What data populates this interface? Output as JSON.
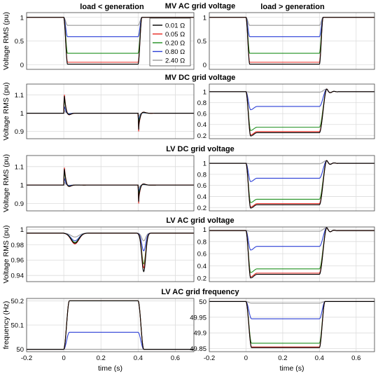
{
  "figure": {
    "column_titles": [
      "load < generation",
      "load > generation"
    ],
    "xlabel": "time (s)",
    "legend_entries": [
      "0.01 Ω",
      "0.05 Ω",
      "0.20 Ω",
      "0.80 Ω",
      "2.40 Ω"
    ],
    "colors": {
      "0.01 Ω": "#000000",
      "0.05 Ω": "#e8241c",
      "0.20 Ω": "#1f8f1f",
      "0.80 Ω": "#2b3fd6",
      "2.40 Ω": "#9a9a9a",
      "grid": "#dcdcdc",
      "axis": "#444444"
    },
    "x_ticks": [
      "-0.2",
      "0",
      "0.2",
      "0.4",
      "0.6"
    ]
  },
  "chart_data": [
    {
      "type": "line",
      "title": "MV AC grid voltage",
      "column": "load < generation",
      "ylabel": "Voltage RMS (pu)",
      "xlim": [
        -0.2,
        0.7
      ],
      "ylim": [
        -0.1,
        1.1
      ],
      "yticks": [
        "0",
        "0.5",
        "1"
      ],
      "grid": true,
      "legend": "top-right",
      "series": [
        {
          "name": "0.01 Ω",
          "pre": 1.0,
          "sag": 0.01,
          "post": 1.0
        },
        {
          "name": "0.05 Ω",
          "pre": 1.0,
          "sag": 0.05,
          "post": 1.0
        },
        {
          "name": "0.20 Ω",
          "pre": 1.0,
          "sag": 0.24,
          "post": 1.0
        },
        {
          "name": "0.80 Ω",
          "pre": 1.0,
          "sag": 0.59,
          "post": 1.0
        },
        {
          "name": "2.40 Ω",
          "pre": 1.0,
          "sag": 0.83,
          "post": 1.0
        }
      ]
    },
    {
      "type": "line",
      "title": "",
      "column": "load > generation",
      "ylabel": "",
      "xlim": [
        -0.2,
        0.7
      ],
      "ylim": [
        -0.1,
        1.1
      ],
      "yticks": [
        "0",
        "0.5",
        "1"
      ],
      "grid": true,
      "series": [
        {
          "name": "0.01 Ω",
          "pre": 1.0,
          "sag": 0.01,
          "post": 1.0
        },
        {
          "name": "0.05 Ω",
          "pre": 1.0,
          "sag": 0.05,
          "post": 1.0
        },
        {
          "name": "0.20 Ω",
          "pre": 1.0,
          "sag": 0.24,
          "post": 1.0
        },
        {
          "name": "0.80 Ω",
          "pre": 1.0,
          "sag": 0.59,
          "post": 1.0
        },
        {
          "name": "2.40 Ω",
          "pre": 1.0,
          "sag": 0.83,
          "post": 1.0
        }
      ]
    },
    {
      "type": "line",
      "title": "MV DC grid voltage",
      "column": "load < generation",
      "ylabel": "Voltage RMS (pu)",
      "xlim": [
        -0.2,
        0.7
      ],
      "ylim": [
        0.86,
        1.16
      ],
      "yticks": [
        "0.9",
        "1",
        "1.1"
      ],
      "grid": true,
      "series": [
        {
          "name": "0.01 Ω",
          "peak1": 1.13,
          "dip2": 0.91
        },
        {
          "name": "0.05 Ω",
          "peak1": 1.14,
          "dip2": 0.9
        },
        {
          "name": "0.20 Ω",
          "peak1": 1.11,
          "dip2": 0.93
        },
        {
          "name": "0.80 Ω",
          "peak1": 1.05,
          "dip2": 0.95
        },
        {
          "name": "2.40 Ω",
          "peak1": 1.02,
          "dip2": 0.98
        }
      ]
    },
    {
      "type": "line",
      "title": "",
      "column": "load > generation",
      "ylabel": "",
      "xlim": [
        -0.2,
        0.7
      ],
      "ylim": [
        0.14,
        1.14
      ],
      "yticks": [
        "0.2",
        "0.4",
        "0.6",
        "0.8",
        "1"
      ],
      "grid": true,
      "series": [
        {
          "name": "0.01 Ω",
          "pre": 1.0,
          "sag": 0.25,
          "post": 1.0
        },
        {
          "name": "0.05 Ω",
          "pre": 1.0,
          "sag": 0.27,
          "post": 1.0
        },
        {
          "name": "0.20 Ω",
          "pre": 1.0,
          "sag": 0.35,
          "post": 1.0
        },
        {
          "name": "0.80 Ω",
          "pre": 1.0,
          "sag": 0.73,
          "post": 1.0
        },
        {
          "name": "2.40 Ω",
          "pre": 1.0,
          "sag": 0.99,
          "post": 1.0
        }
      ]
    },
    {
      "type": "line",
      "title": "LV DC grid voltage",
      "column": "load < generation",
      "ylabel": "Voltage RMS (pu)",
      "xlim": [
        -0.2,
        0.7
      ],
      "ylim": [
        0.86,
        1.16
      ],
      "yticks": [
        "0.9",
        "1",
        "1.1"
      ],
      "grid": true,
      "series": [
        {
          "name": "0.01 Ω",
          "peak1": 1.12,
          "dip2": 0.91
        },
        {
          "name": "0.05 Ω",
          "peak1": 1.13,
          "dip2": 0.9
        },
        {
          "name": "0.20 Ω",
          "peak1": 1.1,
          "dip2": 0.93
        },
        {
          "name": "0.80 Ω",
          "peak1": 1.05,
          "dip2": 0.95
        },
        {
          "name": "2.40 Ω",
          "peak1": 1.02,
          "dip2": 0.98
        }
      ]
    },
    {
      "type": "line",
      "title": "",
      "column": "load > generation",
      "ylabel": "",
      "xlim": [
        -0.2,
        0.7
      ],
      "ylim": [
        0.14,
        1.14
      ],
      "yticks": [
        "0.2",
        "0.4",
        "0.6",
        "0.8",
        "1"
      ],
      "grid": true,
      "series": [
        {
          "name": "0.01 Ω",
          "pre": 1.0,
          "sag": 0.25,
          "post": 1.0
        },
        {
          "name": "0.05 Ω",
          "pre": 1.0,
          "sag": 0.27,
          "post": 1.0
        },
        {
          "name": "0.20 Ω",
          "pre": 1.0,
          "sag": 0.35,
          "post": 1.0
        },
        {
          "name": "0.80 Ω",
          "pre": 1.0,
          "sag": 0.73,
          "post": 1.0
        },
        {
          "name": "2.40 Ω",
          "pre": 1.0,
          "sag": 0.99,
          "post": 1.0
        }
      ]
    },
    {
      "type": "line",
      "title": "LV AC grid voltage",
      "column": "load < generation",
      "ylabel": "Voltage RMS (pu)",
      "xlim": [
        -0.2,
        0.7
      ],
      "ylim": [
        0.932,
        1.003
      ],
      "yticks": [
        "0.94",
        "0.96",
        "0.98",
        "1"
      ],
      "grid": true,
      "series": [
        {
          "name": "0.01 Ω",
          "base": 0.995,
          "dip1": 0.982,
          "dip2": 0.945
        },
        {
          "name": "0.05 Ω",
          "base": 0.995,
          "dip1": 0.981,
          "dip2": 0.95
        },
        {
          "name": "0.20 Ω",
          "base": 0.995,
          "dip1": 0.983,
          "dip2": 0.955
        },
        {
          "name": "0.80 Ω",
          "base": 0.995,
          "dip1": 0.985,
          "dip2": 0.972
        },
        {
          "name": "2.40 Ω",
          "base": 0.995,
          "dip1": 0.99,
          "dip2": 0.985
        }
      ]
    },
    {
      "type": "line",
      "title": "",
      "column": "load > generation",
      "ylabel": "",
      "xlim": [
        -0.2,
        0.7
      ],
      "ylim": [
        0.14,
        1.04
      ],
      "yticks": [
        "0.2",
        "0.4",
        "0.6",
        "0.8",
        "1"
      ],
      "grid": true,
      "series": [
        {
          "name": "0.01 Ω",
          "pre": 0.98,
          "sag": 0.26,
          "post": 0.98
        },
        {
          "name": "0.05 Ω",
          "pre": 0.98,
          "sag": 0.28,
          "post": 0.98
        },
        {
          "name": "0.20 Ω",
          "pre": 0.98,
          "sag": 0.35,
          "post": 0.98
        },
        {
          "name": "0.80 Ω",
          "pre": 0.98,
          "sag": 0.72,
          "post": 0.98
        },
        {
          "name": "2.40 Ω",
          "pre": 0.98,
          "sag": 0.97,
          "post": 0.98
        }
      ]
    },
    {
      "type": "line",
      "title": "LV AC grid frequency",
      "column": "load < generation",
      "ylabel": "frequency (Hz)",
      "xlim": [
        -0.2,
        0.7
      ],
      "ylim": [
        49.99,
        50.21
      ],
      "yticks": [
        "50",
        "50.1",
        "50.2"
      ],
      "grid": true,
      "series": [
        {
          "name": "0.01 Ω",
          "pre": 50.0,
          "sag": 50.2,
          "post": 50.0
        },
        {
          "name": "0.05 Ω",
          "pre": 50.0,
          "sag": 50.2,
          "post": 50.0
        },
        {
          "name": "0.20 Ω",
          "pre": 50.0,
          "sag": 50.2,
          "post": 50.0
        },
        {
          "name": "0.80 Ω",
          "pre": 50.0,
          "sag": 50.07,
          "post": 50.0
        },
        {
          "name": "2.40 Ω",
          "pre": 50.0,
          "sag": 50.0,
          "post": 50.0
        }
      ]
    },
    {
      "type": "line",
      "title": "",
      "column": "load > generation",
      "ylabel": "",
      "xlim": [
        -0.2,
        0.7
      ],
      "ylim": [
        49.84,
        50.01
      ],
      "yticks": [
        "49.85",
        "49.9",
        "49.95",
        "50"
      ],
      "grid": true,
      "series": [
        {
          "name": "0.01 Ω",
          "pre": 50.0,
          "sag": 49.853,
          "post": 50.0
        },
        {
          "name": "0.05 Ω",
          "pre": 50.0,
          "sag": 49.855,
          "post": 50.0
        },
        {
          "name": "0.20 Ω",
          "pre": 50.0,
          "sag": 49.867,
          "post": 50.0
        },
        {
          "name": "0.80 Ω",
          "pre": 50.0,
          "sag": 49.945,
          "post": 50.0
        },
        {
          "name": "2.40 Ω",
          "pre": 50.0,
          "sag": 49.995,
          "post": 50.0
        }
      ]
    }
  ]
}
